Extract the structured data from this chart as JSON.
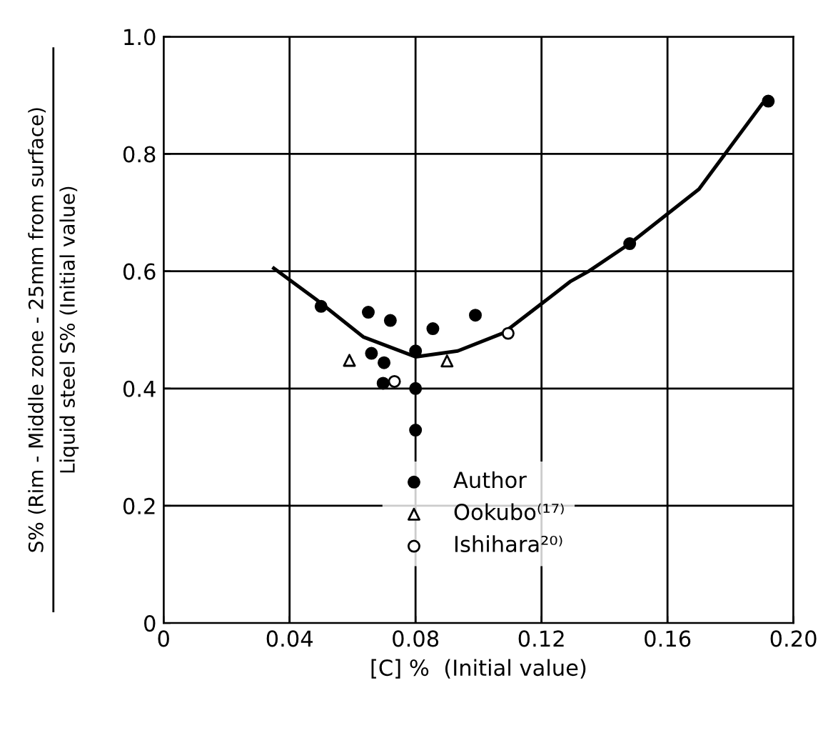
{
  "chart_data": {
    "type": "scatter",
    "xlabel": "[C] %  (Initial value)",
    "ylabel": "S% (Rim - Middle zone - 25mm from surface)\nLiquid steel S% (Initial value)",
    "xlim": [
      0,
      0.2
    ],
    "ylim": [
      0,
      1.0
    ],
    "xticks": [
      0,
      0.04,
      0.08,
      0.12,
      0.16,
      {
        "value": 0.2,
        "label": "0.20"
      }
    ],
    "yticks": [
      0,
      0.2,
      0.4,
      0.6,
      0.8,
      {
        "value": 1.0,
        "label": "1.0"
      }
    ],
    "grid": true,
    "legend": "bottom",
    "series": [
      {
        "name": "Author",
        "color": "#000000",
        "marker": "circle",
        "x": [
          0.05,
          0.065,
          0.072,
          0.0855,
          0.099,
          0.08,
          0.066,
          0.07,
          0.0697,
          0.08,
          0.08,
          0.148,
          0.192
        ],
        "values": [
          0.54,
          0.53,
          0.516,
          0.502,
          0.525,
          0.464,
          0.46,
          0.444,
          0.409,
          0.4,
          0.329,
          0.647,
          0.89
        ]
      },
      {
        "name": "Ookubo⁽¹⁷⁾",
        "color": "#ffffff",
        "marker": "triangle",
        "x": [
          0.059,
          0.09
        ],
        "values": [
          0.448,
          0.447
        ]
      },
      {
        "name": "Ishihara²⁰⁾",
        "color": "#ffffff",
        "marker": "circle",
        "x": [
          0.0733,
          0.1094
        ],
        "values": [
          0.412,
          0.494
        ]
      },
      {
        "type": "line",
        "color": "#000000",
        "marker": "none",
        "x": [
          0.035,
          0.0484,
          0.0634,
          0.08,
          0.0934,
          0.108,
          0.1293,
          0.135,
          0.148,
          0.17,
          0.19
        ],
        "values": [
          0.605,
          0.552,
          0.488,
          0.454,
          0.464,
          0.495,
          0.583,
          0.6,
          0.647,
          0.74,
          0.885
        ]
      }
    ]
  }
}
